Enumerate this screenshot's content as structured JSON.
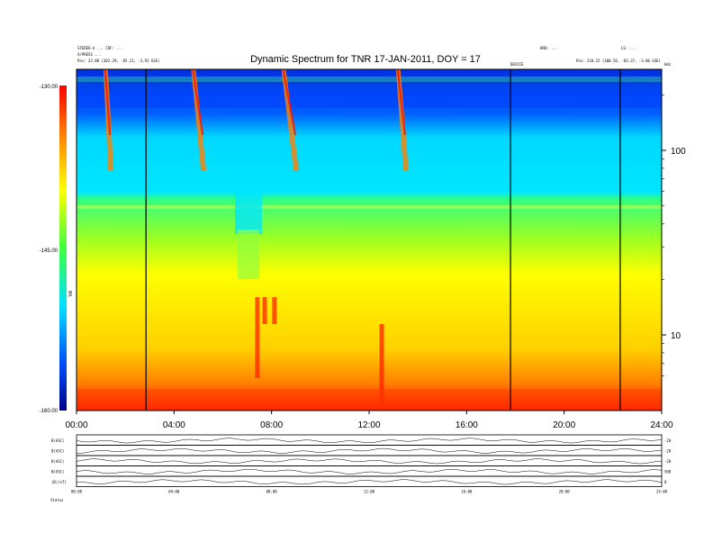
{
  "chart_data": {
    "type": "heatmap",
    "title": "Dynamic Spectrum for TNR 17-JAN-2011, DOY = 17",
    "header_left": [
      "STEREO-A  ...  CDF:  ...",
      "A/PRESS  ...",
      "Pos:  22.80 (302.29, -85.21, -3.91 GSE)"
    ],
    "header_right": [
      "HRD: ...",
      "LS: ...",
      "Pos:  218.25 (300.56, -83.37, -3.06 GSE)"
    ],
    "x_ticks": [
      "00:00",
      "04:00",
      "08:00",
      "12:00",
      "16:00",
      "20:00",
      "24:00"
    ],
    "x_range_hours": [
      0,
      24
    ],
    "y_scale": "log",
    "y_ticks": [
      {
        "value": 100,
        "label": "100"
      },
      {
        "value": 10,
        "label": "10"
      }
    ],
    "y_corner_label": "kHz",
    "colorbar": {
      "label": "TNR",
      "range": [
        -160,
        -130
      ],
      "ticks": [
        "-130.00",
        "-145.00",
        "-160.00"
      ]
    },
    "vertical_lines_hours": [
      2.85,
      17.8,
      22.3
    ],
    "vline_label": "DEVICE",
    "panels": [
      {
        "label": "B(ASC)",
        "right": "-20"
      },
      {
        "label": "B(ASC)",
        "right": "-20"
      },
      {
        "label": "B(ASC)",
        "right": "-20"
      },
      {
        "label": "N(ASC)",
        "right": "500"
      },
      {
        "label": "|B|(nT)",
        "right": "0"
      }
    ],
    "panel_footer_label": "Status"
  }
}
